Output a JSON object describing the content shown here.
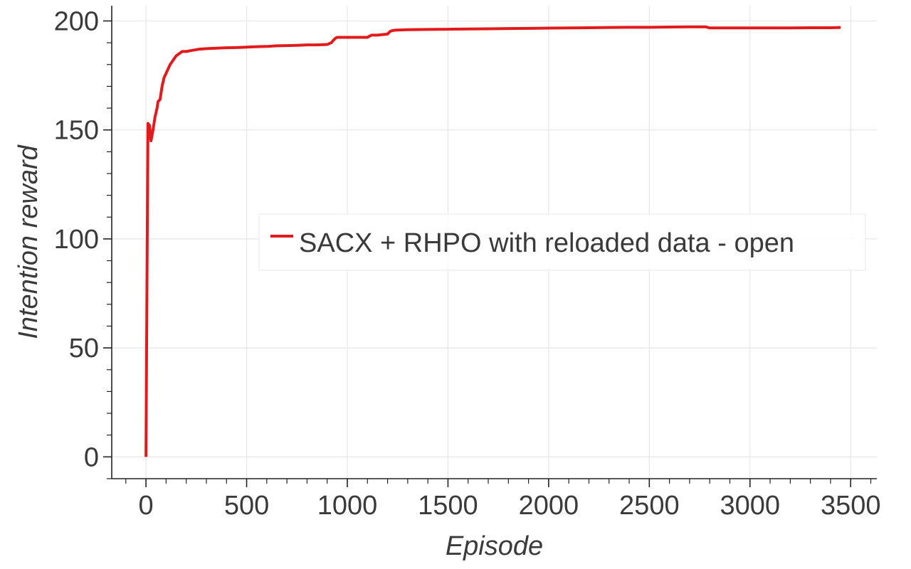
{
  "chart_data": {
    "type": "line",
    "title": "",
    "xlabel": "Episode",
    "ylabel": "Intention reward",
    "xlim": [
      -170,
      3630
    ],
    "ylim": [
      -10,
      207
    ],
    "xticks": [
      0,
      500,
      1000,
      1500,
      2000,
      2500,
      3000,
      3500
    ],
    "yticks": [
      0,
      50,
      100,
      150,
      200
    ],
    "grid": true,
    "legend_position": "center-right",
    "series": [
      {
        "name": "SACX + RHPO with reloaded data - open",
        "color": "#e31a1c",
        "x": [
          0,
          5,
          10,
          18,
          25,
          35,
          45,
          55,
          60,
          70,
          80,
          90,
          100,
          110,
          120,
          135,
          150,
          165,
          180,
          200,
          230,
          260,
          300,
          350,
          400,
          450,
          500,
          550,
          600,
          650,
          700,
          750,
          800,
          850,
          900,
          920,
          930,
          940,
          950,
          960,
          1000,
          1050,
          1100,
          1120,
          1130,
          1150,
          1200,
          1210,
          1220,
          1240,
          1300,
          1400,
          1500,
          1600,
          1700,
          1800,
          1900,
          2000,
          2100,
          2200,
          2300,
          2400,
          2500,
          2600,
          2700,
          2780,
          2800,
          2820,
          2900,
          3000,
          3100,
          3200,
          3300,
          3350,
          3400,
          3450
        ],
        "y": [
          0,
          80,
          153,
          152,
          145,
          150,
          156,
          160,
          163,
          164,
          170,
          174,
          176,
          178,
          180,
          182,
          184,
          185,
          186,
          186,
          186.5,
          187,
          187.3,
          187.5,
          187.7,
          187.8,
          188,
          188.2,
          188.3,
          188.6,
          188.7,
          188.8,
          189,
          189,
          189.2,
          190,
          191,
          192,
          192.5,
          192.5,
          192.5,
          192.5,
          192.5,
          193.5,
          193.5,
          193.5,
          194,
          195,
          195.5,
          195.8,
          196,
          196.1,
          196.2,
          196.3,
          196.4,
          196.5,
          196.6,
          196.7,
          196.8,
          196.9,
          197,
          197.1,
          197.1,
          197.2,
          197.3,
          197.3,
          196.8,
          196.8,
          196.8,
          196.8,
          196.8,
          196.8,
          196.9,
          196.9,
          196.9,
          197
        ]
      }
    ]
  }
}
